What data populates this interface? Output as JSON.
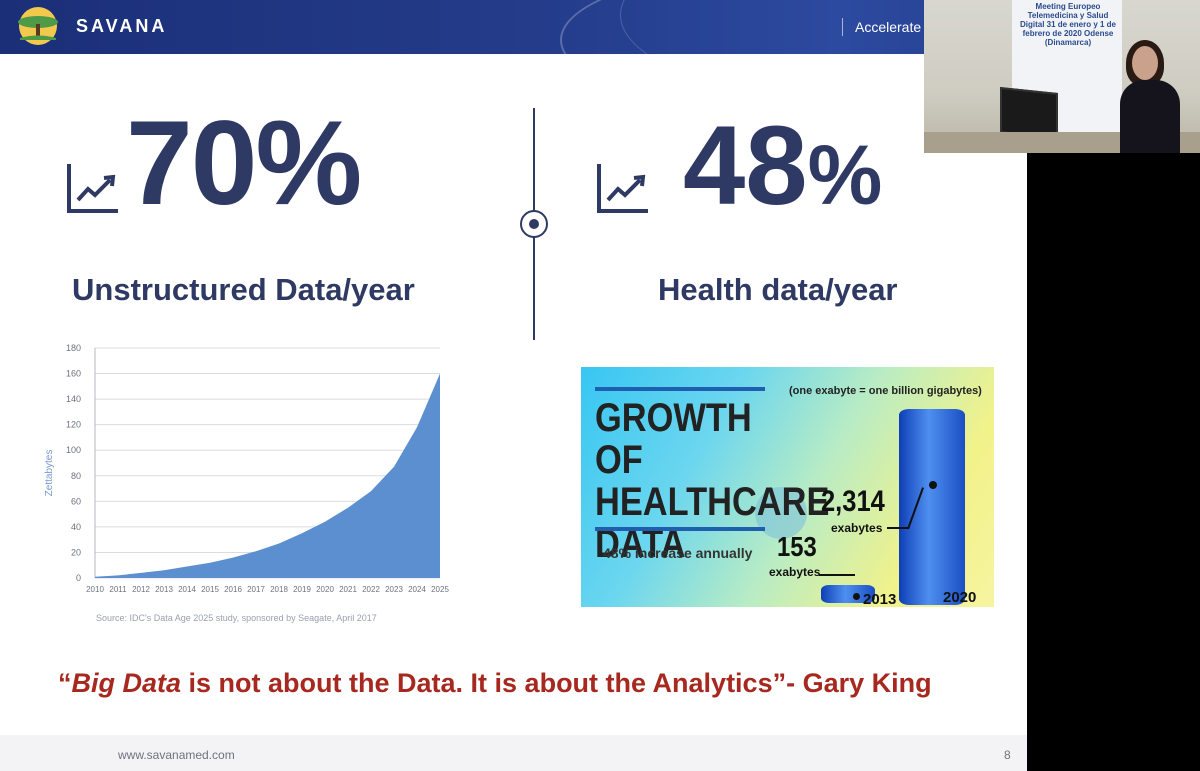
{
  "header": {
    "brand": "SAVANA",
    "tagline": "Accelerate H"
  },
  "webcam": {
    "banner_text": "Meeting Europeo Telemedicina y Salud Digital 31 de enero y 1 de febrero de 2020 Odense (Dinamarca)"
  },
  "stats": {
    "left": {
      "value": "70%",
      "label": "Unstructured Data/year"
    },
    "right": {
      "value": "48",
      "suffix": "%",
      "label": "Health data/year"
    }
  },
  "chart_data": {
    "type": "area",
    "categories": [
      "2010",
      "2011",
      "2012",
      "2013",
      "2014",
      "2015",
      "2016",
      "2017",
      "2018",
      "2019",
      "2020",
      "2021",
      "2022",
      "2023",
      "2024",
      "2025"
    ],
    "values": [
      1,
      2,
      4,
      6,
      9,
      12,
      16,
      21,
      27,
      35,
      44,
      55,
      68,
      87,
      118,
      160
    ],
    "ylabel": "Zettabytes",
    "ylim": [
      0,
      180
    ],
    "yticks": [
      "0",
      "20",
      "40",
      "60",
      "80",
      "100",
      "120",
      "140",
      "160",
      "180"
    ],
    "grid": true,
    "color": "#5b8fcf"
  },
  "source": "Source: IDC's Data Age 2025 study, sponsored by Seagate, April 2017",
  "infographic": {
    "title": "GROWTH OF HEALTHCARE DATA",
    "rate": "48% increase annually",
    "note": "(one exabyte = one billion gigabytes)",
    "value_2020": "2,314",
    "unit_2020": "exabytes",
    "value_2013": "153",
    "unit_2013": "exabytes",
    "year_2013": "2013",
    "year_2020": "2020"
  },
  "quote": {
    "open": "“",
    "emph": "Big Data",
    "rest": " is not about the Data. It is about the Analytics”- Gary King"
  },
  "footer": {
    "url": "www.savanamed.com",
    "page": "8"
  },
  "colors": {
    "navy": "#2f3a64",
    "quote_red": "#a6281e",
    "chart_blue": "#5b8fcf"
  }
}
